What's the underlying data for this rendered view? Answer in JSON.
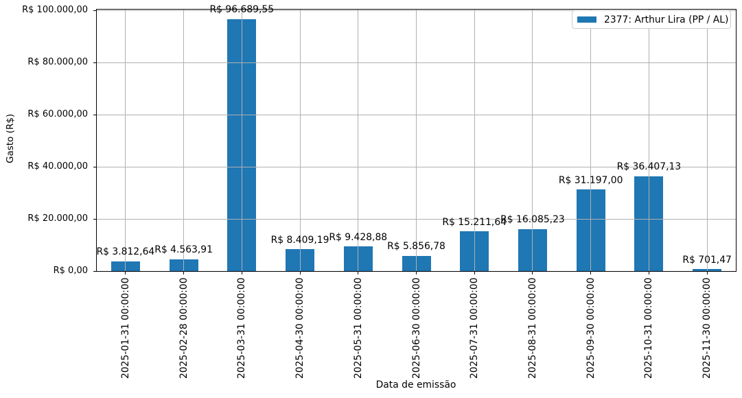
{
  "chart_data": {
    "type": "bar",
    "title": "",
    "xlabel": "Data de emissão",
    "ylabel": "Gasto (R$)",
    "categories": [
      "2025-01-31 00:00:00",
      "2025-02-28 00:00:00",
      "2025-03-31 00:00:00",
      "2025-04-30 00:00:00",
      "2025-05-31 00:00:00",
      "2025-06-30 00:00:00",
      "2025-07-31 00:00:00",
      "2025-08-31 00:00:00",
      "2025-09-30 00:00:00",
      "2025-10-31 00:00:00",
      "2025-11-30 00:00:00"
    ],
    "values": [
      3812.64,
      4563.91,
      96689.55,
      8409.19,
      9428.88,
      5856.78,
      15211.64,
      16085.23,
      31197.0,
      36407.13,
      701.47
    ],
    "value_labels": [
      "R$ 3.812,64",
      "R$ 4.563,91",
      "R$ 96.689,55",
      "R$ 8.409,19",
      "R$ 9.428,88",
      "R$ 5.856,78",
      "R$ 15.211,64",
      "R$ 16.085,23",
      "R$ 31.197,00",
      "R$ 36.407,13",
      "R$ 701,47"
    ],
    "ylim": [
      0,
      100000
    ],
    "yticks": {
      "values": [
        0,
        20000,
        40000,
        60000,
        80000,
        100000
      ],
      "labels": [
        "R$ 0,00",
        "R$ 20.000,00",
        "R$ 40.000,00",
        "R$ 60.000,00",
        "R$ 80.000,00",
        "R$ 100.000,00"
      ]
    },
    "grid": true,
    "legend": {
      "position": "upper right",
      "entries": [
        {
          "label": "2377: Arthur Lira (PP / AL)",
          "color": "#1f77b4"
        }
      ]
    },
    "bar_color": "#1f77b4",
    "grid_color": "#b0b0b0"
  }
}
